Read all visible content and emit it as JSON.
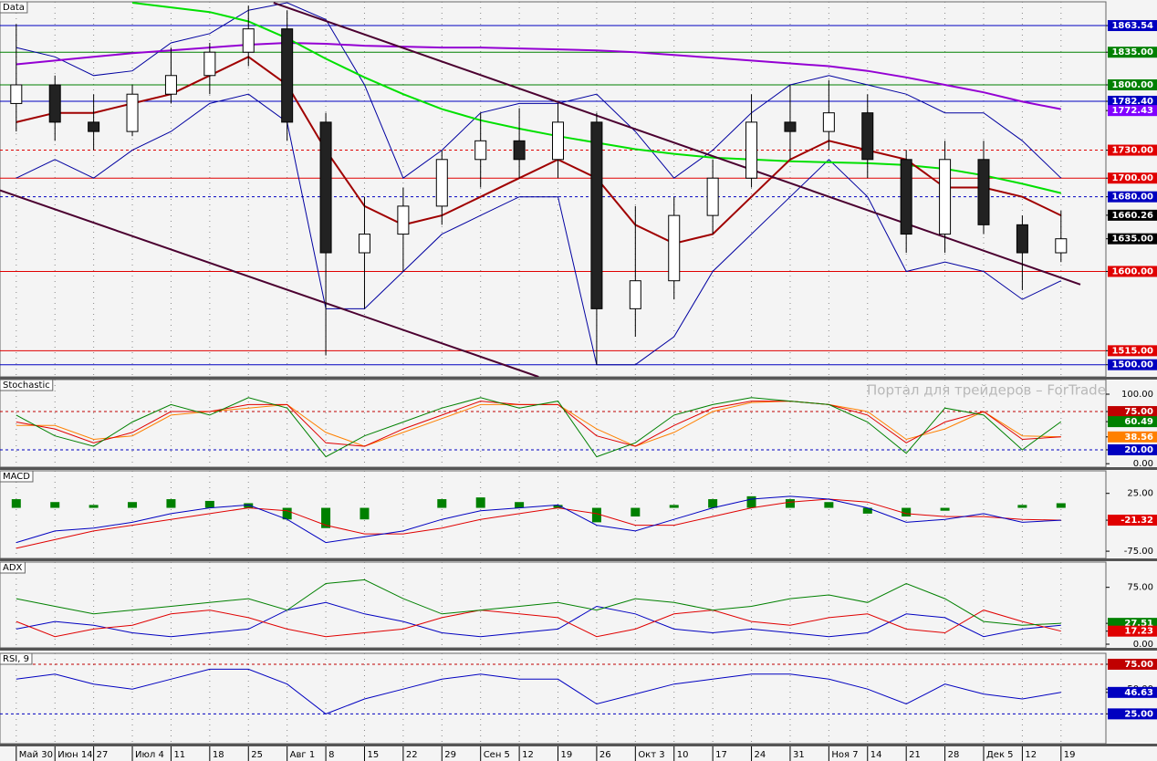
{
  "chart_data": [
    {
      "type": "candlestick",
      "title": "Data",
      "grid": true,
      "categories": [
        "Май 30",
        "Июн 14",
        "27",
        "Июл 4",
        "11",
        "18",
        "25",
        "Авг 1",
        "8",
        "15",
        "22",
        "29",
        "Сен 5",
        "12",
        "19",
        "26",
        "Окт 3",
        "10",
        "17",
        "24",
        "31",
        "Ноя 7",
        "14",
        "21",
        "28",
        "Дек 5",
        "12",
        "19"
      ],
      "xlim": [
        -0.42,
        28.16
      ],
      "ylim": [
        1487,
        1889
      ],
      "open": [
        1780,
        1800,
        1760,
        1750,
        1790,
        1810,
        1835,
        1860,
        1760,
        1620,
        1640,
        1670,
        1720,
        1740,
        1720,
        1760,
        1560,
        1590,
        1660,
        1700,
        1760,
        1750,
        1770,
        1720,
        1640,
        1720,
        1650,
        1620
      ],
      "high": [
        1865,
        1810,
        1790,
        1800,
        1840,
        1845,
        1885,
        1880,
        1770,
        1680,
        1690,
        1730,
        1770,
        1775,
        1780,
        1770,
        1670,
        1680,
        1720,
        1790,
        1800,
        1805,
        1790,
        1730,
        1740,
        1740,
        1660,
        1665
      ],
      "low": [
        1750,
        1740,
        1730,
        1745,
        1780,
        1790,
        1820,
        1740,
        1510,
        1560,
        1600,
        1650,
        1690,
        1700,
        1700,
        1500,
        1530,
        1570,
        1640,
        1690,
        1720,
        1730,
        1700,
        1620,
        1620,
        1640,
        1580,
        1610
      ],
      "close": [
        1800,
        1760,
        1750,
        1790,
        1810,
        1835,
        1860,
        1760,
        1620,
        1640,
        1670,
        1720,
        1740,
        1720,
        1760,
        1560,
        1590,
        1660,
        1700,
        1760,
        1750,
        1770,
        1720,
        1640,
        1720,
        1650,
        1620,
        1635
      ],
      "overlays": [
        {
          "color": "#0000a0",
          "width": 1,
          "values": [
            1840,
            1830,
            1810,
            1815,
            1845,
            1855,
            1880,
            1888,
            1870,
            1800,
            1700,
            1730,
            1770,
            1780,
            1780,
            1790,
            1750,
            1700,
            1730,
            1770,
            1800,
            1810,
            1800,
            1790,
            1770,
            1770,
            1740,
            1700
          ]
        },
        {
          "color": "#0000a0",
          "width": 1,
          "values": [
            1700,
            1720,
            1700,
            1730,
            1750,
            1780,
            1790,
            1760,
            1560,
            1560,
            1600,
            1640,
            1660,
            1680,
            1680,
            1500,
            1500,
            1530,
            1600,
            1640,
            1680,
            1720,
            1680,
            1600,
            1610,
            1600,
            1570,
            1590
          ]
        },
        {
          "color": "#9400d3",
          "width": 2,
          "values": [
            1822,
            1826,
            1830,
            1834,
            1837,
            1840,
            1843,
            1845,
            1844,
            1842,
            1841,
            1840,
            1840,
            1839,
            1838,
            1837,
            1835,
            1832,
            1829,
            1826,
            1823,
            1820,
            1815,
            1808,
            1800,
            1792,
            1782,
            1774
          ]
        },
        {
          "color": "#00e000",
          "width": 2,
          "values": [
            null,
            null,
            null,
            1888,
            1883,
            1878,
            1868,
            1850,
            1828,
            1808,
            1790,
            1774,
            1762,
            1753,
            1745,
            1738,
            1731,
            1726,
            1722,
            1720,
            1718,
            1717,
            1716,
            1714,
            1710,
            1703,
            1694,
            1684
          ]
        },
        {
          "color": "#a00000",
          "width": 2,
          "values": [
            1760,
            1770,
            1770,
            1780,
            1790,
            1810,
            1830,
            1800,
            1730,
            1670,
            1650,
            1660,
            1680,
            1700,
            1720,
            1700,
            1650,
            1630,
            1640,
            1680,
            1720,
            1740,
            1730,
            1720,
            1690,
            1690,
            1680,
            1660
          ]
        }
      ],
      "trendlines": [
        {
          "color": "#4b0030",
          "x": [
            6.65,
            27.5
          ],
          "y": [
            1888,
            1586
          ]
        },
        {
          "color": "#4b0030",
          "x": [
            -0.42,
            13.5
          ],
          "y": [
            1687,
            1487
          ]
        }
      ],
      "yticks": [
        {
          "value": 1863.54,
          "label": "1863.54",
          "color": "#0000c0",
          "line": "solid"
        },
        {
          "value": 1835,
          "label": "1835.00",
          "color": "#008000",
          "line": "solid"
        },
        {
          "value": 1800,
          "label": "1800.00",
          "color": "#008000",
          "line": "solid"
        },
        {
          "value": 1782.4,
          "label": "1782.40",
          "color": "#0000c0",
          "line": "solid"
        },
        {
          "value": 1772.43,
          "label": "1772.43",
          "color": "#8000ff"
        },
        {
          "value": 1730,
          "label": "1730.00",
          "color": "#e00000",
          "line": "dashed"
        },
        {
          "value": 1700,
          "label": "1700.00",
          "color": "#e00000",
          "line": "solid"
        },
        {
          "value": 1680,
          "label": "1680.00",
          "color": "#0000c0",
          "line": "dashed"
        },
        {
          "value": 1660.26,
          "label": "1660.26",
          "color": "#000000"
        },
        {
          "value": 1635,
          "label": "1635.00",
          "color": "#000000"
        },
        {
          "value": 1600,
          "label": "1600.00",
          "color": "#e00000",
          "line": "solid"
        },
        {
          "value": 1515,
          "label": "1515.00",
          "color": "#e00000",
          "line": "solid"
        },
        {
          "value": 1500,
          "label": "1500.00",
          "color": "#0000c0",
          "line": "solid"
        }
      ]
    },
    {
      "type": "line",
      "title": "Stochastic",
      "annotation": "Портал для трейдеров – ForTrader",
      "ylim": [
        -5,
        121
      ],
      "yticks": [
        {
          "value": 100,
          "label": "100.00"
        },
        {
          "value": 75,
          "label": "75.00",
          "color": "#c00000",
          "line": "dashed"
        },
        {
          "value": 60.49,
          "label": "60.49",
          "color": "#008000"
        },
        {
          "value": 38.56,
          "label": "38.56",
          "color": "#ff8000"
        },
        {
          "value": 20,
          "label": "20.00",
          "color": "#0000c0",
          "line": "dashed"
        },
        {
          "value": 0,
          "label": "0.00"
        }
      ],
      "series": [
        {
          "color": "#ff8000",
          "values": [
            55,
            55,
            35,
            40,
            70,
            75,
            80,
            85,
            45,
            25,
            45,
            65,
            85,
            85,
            85,
            50,
            25,
            45,
            75,
            88,
            90,
            85,
            75,
            35,
            50,
            75,
            40,
            38.56
          ]
        },
        {
          "color": "#e00000",
          "values": [
            60,
            50,
            30,
            45,
            75,
            75,
            85,
            85,
            30,
            25,
            50,
            70,
            90,
            85,
            85,
            40,
            25,
            55,
            80,
            90,
            90,
            85,
            70,
            30,
            60,
            75,
            35,
            38.56
          ]
        },
        {
          "color": "#008000",
          "values": [
            70,
            40,
            25,
            60,
            85,
            70,
            95,
            80,
            10,
            40,
            60,
            80,
            95,
            80,
            90,
            10,
            30,
            70,
            85,
            95,
            90,
            85,
            60,
            15,
            80,
            70,
            20,
            60.49
          ]
        }
      ]
    },
    {
      "type": "line",
      "title": "MACD",
      "ylim": [
        -87.5,
        64
      ],
      "yticks": [
        {
          "value": 25,
          "label": "25.00"
        },
        {
          "value": -21.32,
          "label": "-21.32",
          "color": "#e00000"
        },
        {
          "value": -75,
          "label": "-75.00"
        }
      ],
      "series": [
        {
          "type": "bar",
          "color": "#008000",
          "values": [
            15,
            10,
            5,
            10,
            15,
            12,
            8,
            -20,
            -35,
            -20,
            0,
            15,
            18,
            10,
            5,
            -25,
            -15,
            5,
            15,
            20,
            15,
            10,
            -10,
            -15,
            -5,
            0,
            5,
            8
          ]
        },
        {
          "color": "#e00000",
          "values": [
            -70,
            -55,
            -40,
            -30,
            -20,
            -10,
            0,
            -5,
            -30,
            -45,
            -45,
            -35,
            -20,
            -10,
            0,
            -10,
            -30,
            -30,
            -15,
            0,
            10,
            15,
            10,
            -10,
            -15,
            -15,
            -20,
            -21.32
          ]
        },
        {
          "color": "#0000c0",
          "values": [
            -60,
            -40,
            -35,
            -25,
            -10,
            0,
            5,
            -20,
            -60,
            -50,
            -40,
            -20,
            -5,
            0,
            5,
            -30,
            -40,
            -20,
            0,
            15,
            20,
            15,
            0,
            -25,
            -20,
            -10,
            -25,
            -21.32
          ]
        }
      ]
    },
    {
      "type": "line",
      "title": "ADX",
      "ylim": [
        -4.8,
        108.3
      ],
      "yticks": [
        {
          "value": 75,
          "label": "75.00"
        },
        {
          "value": 27.51,
          "label": "27.51",
          "color": "#008000"
        },
        {
          "value": 17.23,
          "label": "17.23",
          "color": "#e00000"
        },
        {
          "value": 0,
          "label": "0.00"
        }
      ],
      "series": [
        {
          "color": "#0000c0",
          "values": [
            20,
            30,
            25,
            15,
            10,
            15,
            20,
            45,
            55,
            40,
            30,
            15,
            10,
            15,
            20,
            50,
            40,
            20,
            15,
            20,
            15,
            10,
            15,
            40,
            35,
            10,
            20,
            25
          ]
        },
        {
          "color": "#e00000",
          "values": [
            30,
            10,
            20,
            25,
            40,
            45,
            35,
            20,
            10,
            15,
            20,
            35,
            45,
            40,
            35,
            10,
            20,
            40,
            45,
            30,
            25,
            35,
            40,
            20,
            15,
            45,
            30,
            17.23
          ]
        },
        {
          "color": "#008000",
          "values": [
            60,
            50,
            40,
            45,
            50,
            55,
            60,
            45,
            80,
            85,
            60,
            40,
            45,
            50,
            55,
            45,
            60,
            55,
            45,
            50,
            60,
            65,
            55,
            80,
            60,
            30,
            25,
            27.51
          ]
        }
      ]
    },
    {
      "type": "line",
      "title": "RSI, 9",
      "ylim": [
        -5,
        86
      ],
      "yticks": [
        {
          "value": 75,
          "label": "75.00",
          "color": "#c00000",
          "line": "dashed"
        },
        {
          "value": 50,
          "label": "50.00"
        },
        {
          "value": 46.63,
          "label": "46.63",
          "color": "#0000c0"
        },
        {
          "value": 25,
          "label": "25.00",
          "color": "#0000c0",
          "line": "dashed"
        }
      ],
      "series": [
        {
          "color": "#0000c0",
          "values": [
            60,
            65,
            55,
            50,
            60,
            70,
            70,
            55,
            25,
            40,
            50,
            60,
            65,
            60,
            60,
            35,
            45,
            55,
            60,
            65,
            65,
            60,
            50,
            35,
            55,
            45,
            40,
            46.63
          ]
        }
      ]
    }
  ]
}
